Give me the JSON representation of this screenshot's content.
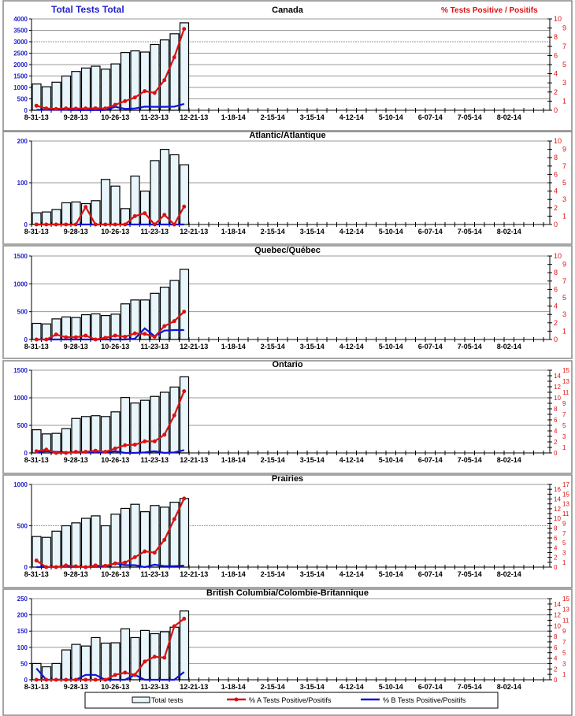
{
  "header": {
    "left_title": "Total Tests Total",
    "right_title": "% Tests Positive / Positifs"
  },
  "legend": {
    "total": "Total tests",
    "a": "% A Tests Positive/Positifs",
    "b": "% B Tests Positive/Positifs"
  },
  "colors": {
    "left_axis": "#2222cc",
    "right_axis": "#dd1111",
    "line_a": "#dd1111",
    "line_b": "#1111dd",
    "bar_fill": "#e8f6fb"
  },
  "chart_data": [
    {
      "type": "bar+line",
      "title": "Canada",
      "ylim": [
        0,
        4000
      ],
      "yticks": [
        0,
        500,
        1000,
        1500,
        2000,
        2500,
        3000,
        3500,
        4000
      ],
      "y2lim": [
        0,
        10
      ],
      "x_labels": [
        "8-31-13",
        "9-28-13",
        "10-26-13",
        "11-23-13",
        "12-21-13",
        "1-18-14",
        "2-15-14",
        "3-15-14",
        "4-12-14",
        "5-10-14",
        "6-07-14",
        "7-05-14",
        "8-02-14"
      ],
      "weeks": 52,
      "total": [
        1150,
        1030,
        1230,
        1500,
        1700,
        1850,
        1930,
        1800,
        2030,
        2530,
        2600,
        2550,
        2880,
        3080,
        3350,
        3830
      ],
      "pct_a": [
        0.5,
        0.2,
        0.15,
        0.2,
        0.18,
        0.2,
        0.22,
        0.2,
        0.6,
        1.0,
        1.4,
        2.1,
        1.9,
        3.3,
        5.8,
        8.9
      ],
      "pct_b": [
        0.05,
        0.05,
        0.05,
        0.05,
        0.02,
        0.02,
        0.02,
        0.02,
        0.38,
        0.15,
        0.2,
        0.4,
        0.38,
        0.38,
        0.4,
        0.7
      ]
    },
    {
      "type": "bar+line",
      "title": "Atlantic/Atlantique",
      "ylim": [
        0,
        200
      ],
      "yticks": [
        0,
        100,
        200
      ],
      "y2lim": [
        0,
        10
      ],
      "total": [
        28,
        30,
        36,
        52,
        54,
        50,
        57,
        108,
        92,
        38,
        116,
        80,
        153,
        180,
        167,
        143
      ],
      "pct_a": [
        0,
        0,
        0,
        0,
        0,
        2.1,
        0,
        0,
        0,
        0,
        1.0,
        1.35,
        0,
        1.15,
        0,
        2.15
      ],
      "pct_b": [
        0,
        0,
        0,
        0,
        0,
        0,
        0,
        0,
        0,
        0,
        0,
        0,
        0,
        0,
        0,
        0
      ]
    },
    {
      "type": "bar+line",
      "title": "Quebec/Québec",
      "ylim": [
        0,
        1500
      ],
      "yticks": [
        0,
        500,
        1000,
        1500
      ],
      "y2lim": [
        0,
        10
      ],
      "total": [
        290,
        280,
        370,
        405,
        395,
        445,
        460,
        430,
        455,
        640,
        710,
        710,
        830,
        940,
        1060,
        1260
      ],
      "pct_a": [
        0,
        0,
        0.6,
        0.27,
        0.27,
        0.47,
        0,
        0.2,
        0.47,
        0.33,
        0.73,
        0.67,
        0.33,
        1.6,
        2.2,
        3.33
      ],
      "pct_b": [
        0,
        0,
        0,
        0,
        0,
        0,
        0,
        0,
        0,
        0,
        0.1,
        1.33,
        0.4,
        1.07,
        1.13,
        1.13
      ]
    },
    {
      "type": "bar+line",
      "title": "Ontario",
      "ylim": [
        0,
        1500
      ],
      "yticks": [
        0,
        500,
        1000,
        1500
      ],
      "y2lim": [
        0,
        15
      ],
      "total": [
        420,
        345,
        355,
        440,
        625,
        660,
        675,
        660,
        745,
        1005,
        905,
        955,
        1025,
        1100,
        1195,
        1380
      ],
      "pct_a": [
        0.3,
        0.6,
        0,
        0,
        0.2,
        0.2,
        0.4,
        0.2,
        0.8,
        1.4,
        1.5,
        2.1,
        2.1,
        3.3,
        6.8,
        11.2
      ],
      "pct_b": [
        0.1,
        0.3,
        0.2,
        0.1,
        0.1,
        0.1,
        0.2,
        0.1,
        0.3,
        0,
        0,
        0.1,
        0.3,
        0,
        0.1,
        0.5
      ]
    },
    {
      "type": "bar+line",
      "title": "Prairies",
      "ylim": [
        0,
        1000
      ],
      "yticks": [
        0,
        500,
        1000
      ],
      "y2lim": [
        0,
        17
      ],
      "total": [
        370,
        360,
        435,
        500,
        535,
        590,
        620,
        500,
        640,
        710,
        760,
        670,
        745,
        725,
        785,
        830
      ],
      "pct_a": [
        1.36,
        0,
        0,
        0.34,
        0.17,
        0,
        0.34,
        0.26,
        0.77,
        0.94,
        2.04,
        3.23,
        2.98,
        5.61,
        9.86,
        14.1
      ],
      "pct_b": [
        0,
        0,
        0.1,
        0.05,
        0.05,
        0.05,
        0.05,
        0.1,
        0.8,
        0.4,
        0.4,
        0,
        0.5,
        0.2,
        0.2,
        0.3
      ]
    },
    {
      "type": "bar+line",
      "title": "British Columbia/Colombie-Britannique",
      "ylim": [
        0,
        250
      ],
      "yticks": [
        0,
        50,
        100,
        150,
        200,
        250
      ],
      "y2lim": [
        0,
        15
      ],
      "total": [
        50,
        40,
        50,
        92,
        109,
        104,
        130,
        113,
        114,
        157,
        130,
        152,
        142,
        148,
        162,
        212
      ],
      "pct_a": [
        0,
        0,
        0,
        0,
        0,
        0,
        0,
        0,
        0.9,
        1.32,
        0.9,
        3.36,
        4.26,
        4.08,
        9.9,
        11.28
      ],
      "pct_b": [
        2.1,
        0,
        0,
        0,
        0,
        0.9,
        0.9,
        0,
        0,
        0,
        0.9,
        0,
        0,
        0,
        0,
        1.44
      ]
    }
  ]
}
